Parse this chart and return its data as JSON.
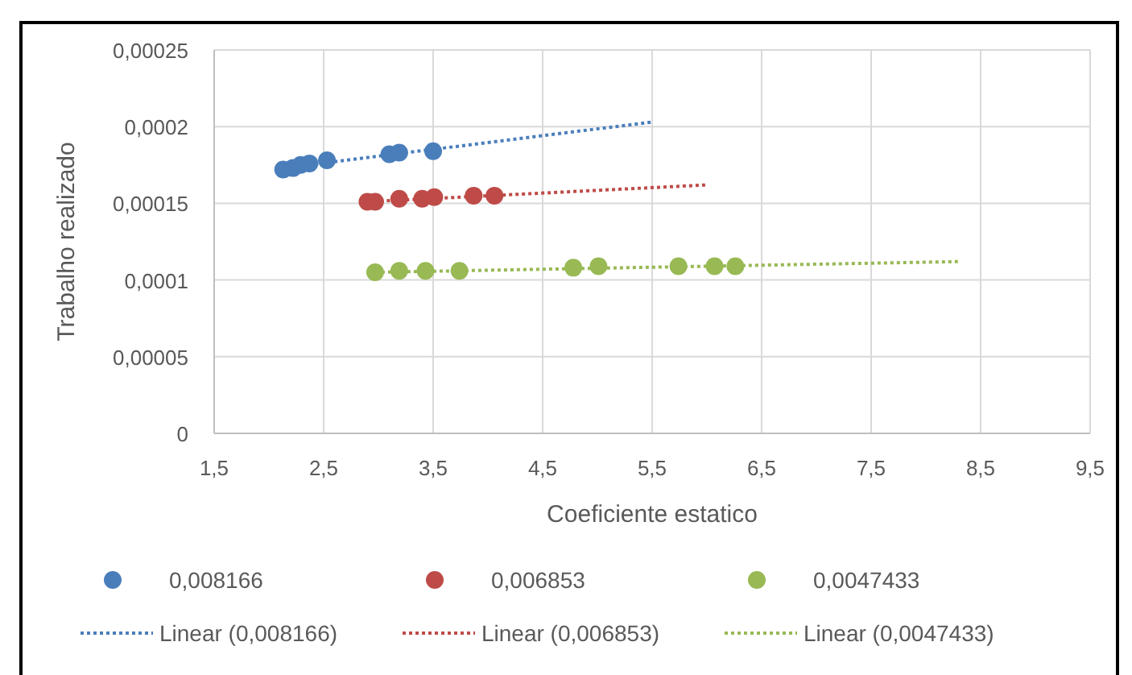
{
  "chart_data": {
    "type": "scatter",
    "xlabel": "Coeficiente estatico",
    "ylabel": "Trabalho realizado",
    "xlim": [
      1.5,
      9.5
    ],
    "xticks": [
      {
        "value": 1.5,
        "label": "1,5"
      },
      {
        "value": 2.5,
        "label": "2,5"
      },
      {
        "value": 3.5,
        "label": "3,5"
      },
      {
        "value": 4.5,
        "label": "4,5"
      },
      {
        "value": 5.5,
        "label": "5,5"
      },
      {
        "value": 6.5,
        "label": "6,5"
      },
      {
        "value": 7.5,
        "label": "7,5"
      },
      {
        "value": 8.5,
        "label": "8,5"
      },
      {
        "value": 9.5,
        "label": "9,5"
      }
    ],
    "ylim": [
      0,
      0.00025
    ],
    "yticks": [
      0,
      {
        "value": 5e-05,
        "label": "0,00005"
      },
      {
        "value": 0.0001,
        "label": "0,0001"
      },
      {
        "value": 0.00015,
        "label": "0,00015"
      },
      {
        "value": 0.0002,
        "label": "0,0002"
      },
      {
        "value": 0.00025,
        "label": "0,00025"
      }
    ],
    "grid": true,
    "legend": "bottom",
    "marker": "circle",
    "series": [
      {
        "name": "0,008166",
        "color": "#4a7ebb",
        "x": [
          2.13,
          2.22,
          2.29,
          2.37,
          2.53,
          3.1,
          3.19,
          3.5
        ],
        "values": [
          0.000172,
          0.000173,
          0.000175,
          0.000176,
          0.000178,
          0.000182,
          0.000183,
          0.000184
        ]
      },
      {
        "name": "0,006853",
        "color": "#be4b48",
        "x": [
          2.9,
          2.97,
          3.19,
          3.4,
          3.51,
          3.87,
          4.06
        ],
        "values": [
          0.000151,
          0.000151,
          0.000153,
          0.000153,
          0.000154,
          0.000155,
          0.000155
        ]
      },
      {
        "name": "0,0047433",
        "color": "#98b954",
        "x": [
          2.97,
          3.19,
          3.43,
          3.74,
          4.78,
          5.01,
          5.74,
          6.07,
          6.26
        ],
        "values": [
          0.000105,
          0.000106,
          0.000106,
          0.000106,
          0.000108,
          0.000109,
          0.000109,
          0.000109,
          0.000109
        ]
      },
      {
        "name": "Linear (0,008166)",
        "type": "line",
        "line_style": "dotted",
        "marker": "none",
        "color": "#4a7ebb",
        "x": [
          2.13,
          5.5
        ],
        "values": [
          0.000173,
          0.000203
        ]
      },
      {
        "name": "Linear (0,006853)",
        "type": "line",
        "line_style": "dotted",
        "marker": "none",
        "color": "#be4b48",
        "x": [
          2.9,
          6.0
        ],
        "values": [
          0.000151,
          0.000162
        ]
      },
      {
        "name": "Linear (0,0047433)",
        "type": "line",
        "line_style": "dotted",
        "marker": "none",
        "color": "#98b954",
        "x": [
          2.97,
          8.3
        ],
        "values": [
          0.000105,
          0.000112
        ]
      }
    ]
  }
}
